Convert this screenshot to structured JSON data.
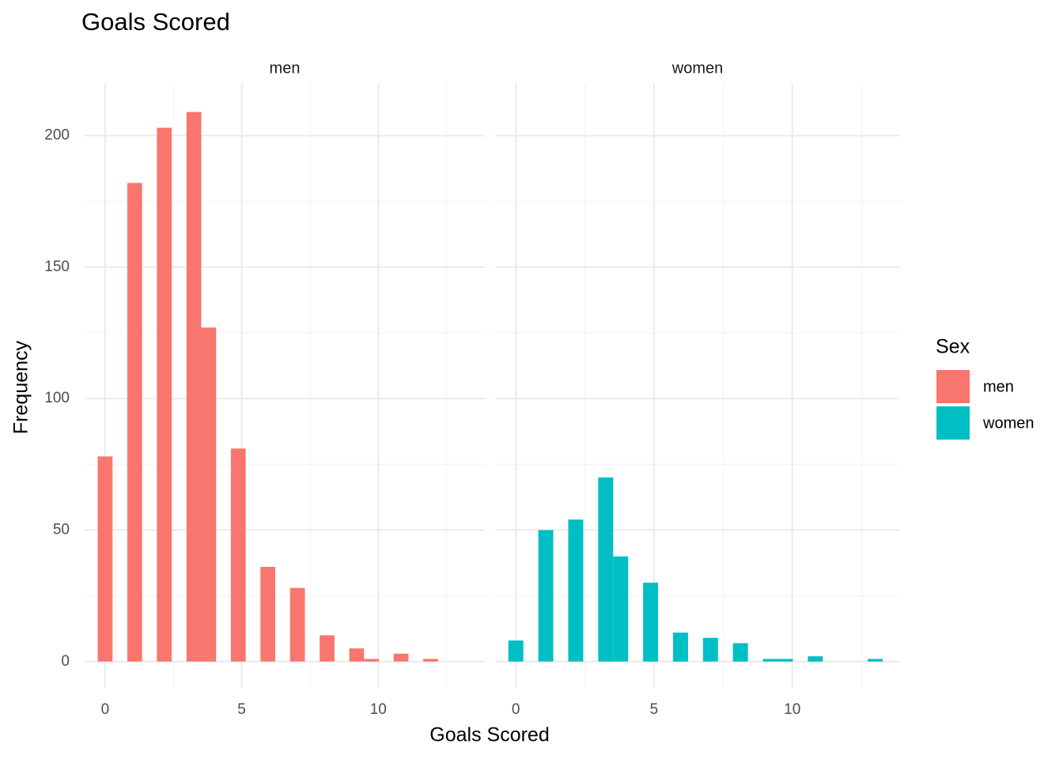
{
  "title": "Goals Scored",
  "x_label": "Goals Scored",
  "y_label": "Frequency",
  "legend_title": "Sex",
  "grid": true,
  "chart_data": [
    {
      "type": "histogram",
      "title": "men",
      "color": "#F8766D",
      "bins": [
        -0.271,
        0.271,
        0.813,
        1.354,
        1.896,
        2.438,
        2.979,
        3.521,
        4.063,
        4.604,
        5.146,
        5.688,
        6.229,
        6.771,
        7.313,
        7.854,
        8.396,
        8.938,
        9.479,
        10.021,
        10.563,
        11.104,
        11.646,
        12.188,
        12.729,
        13.271
      ],
      "counts": [
        78,
        0,
        182,
        0,
        203,
        0,
        209,
        127,
        0,
        81,
        0,
        36,
        0,
        28,
        0,
        10,
        0,
        5,
        1,
        0,
        3,
        0,
        1,
        0,
        0
      ],
      "xlim": [
        -0.75,
        13.9
      ],
      "ylim": [
        -10,
        220
      ],
      "xticks": [
        0,
        5,
        10
      ],
      "yticks": [
        0,
        50,
        100,
        150,
        200
      ]
    },
    {
      "type": "histogram",
      "title": "women",
      "color": "#00BFC4",
      "bins": [
        -0.271,
        0.271,
        0.813,
        1.354,
        1.896,
        2.438,
        2.979,
        3.521,
        4.063,
        4.604,
        5.146,
        5.688,
        6.229,
        6.771,
        7.313,
        7.854,
        8.396,
        8.938,
        9.479,
        10.021,
        10.563,
        11.104,
        11.646,
        12.188,
        12.729,
        13.271
      ],
      "counts": [
        8,
        0,
        50,
        0,
        54,
        0,
        70,
        40,
        0,
        30,
        0,
        11,
        0,
        9,
        0,
        7,
        0,
        1,
        1,
        0,
        2,
        0,
        0,
        0,
        1
      ],
      "xlim": [
        -0.75,
        13.9
      ],
      "ylim": [
        -10,
        220
      ],
      "xticks": [
        0,
        5,
        10
      ],
      "yticks": [
        0,
        50,
        100,
        150,
        200
      ]
    }
  ]
}
